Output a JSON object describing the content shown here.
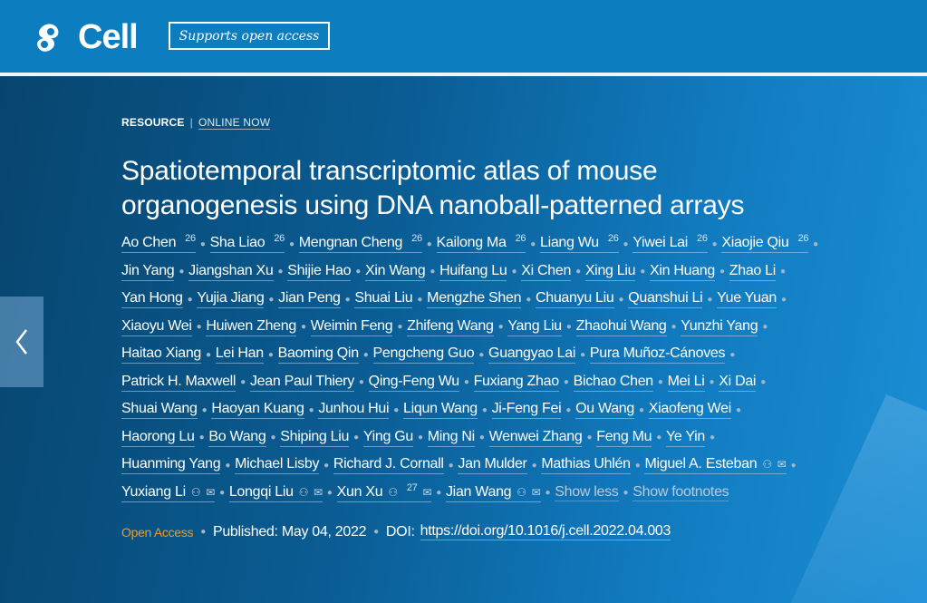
{
  "header": {
    "logo_text": "Cell",
    "badge": "Supports open access"
  },
  "article": {
    "type": "RESOURCE",
    "status": "ONLINE NOW",
    "title_lines": [
      "Spatiotemporal transcriptomic atlas of mouse",
      "organogenesis using DNA nanoball-patterned arrays"
    ],
    "author_lines": [
      [
        {
          "n": "Ao Chen",
          "s": "26"
        },
        {
          "n": "Sha Liao",
          "s": "26"
        },
        {
          "n": "Mengnan Cheng",
          "s": "26"
        },
        {
          "n": "Kailong Ma",
          "s": "26"
        },
        {
          "n": "Liang Wu",
          "s": "26"
        },
        {
          "n": "Yiwei Lai",
          "s": "26"
        },
        {
          "n": "Xiaojie Qiu",
          "s": "26"
        }
      ],
      [
        {
          "n": "Jin Yang"
        },
        {
          "n": "Jiangshan Xu"
        },
        {
          "n": "Shijie Hao"
        },
        {
          "n": "Xin Wang"
        },
        {
          "n": "Huifang Lu"
        },
        {
          "n": "Xi Chen"
        },
        {
          "n": "Xing Liu"
        },
        {
          "n": "Xin Huang"
        },
        {
          "n": "Zhao Li"
        }
      ],
      [
        {
          "n": "Yan Hong"
        },
        {
          "n": "Yujia Jiang"
        },
        {
          "n": "Jian Peng"
        },
        {
          "n": "Shuai Liu"
        },
        {
          "n": "Mengzhe Shen"
        },
        {
          "n": "Chuanyu Liu"
        },
        {
          "n": "Quanshui Li"
        },
        {
          "n": "Yue Yuan"
        }
      ],
      [
        {
          "n": "Xiaoyu Wei"
        },
        {
          "n": "Huiwen Zheng"
        },
        {
          "n": "Weimin Feng"
        },
        {
          "n": "Zhifeng Wang"
        },
        {
          "n": "Yang Liu"
        },
        {
          "n": "Zhaohui Wang"
        },
        {
          "n": "Yunzhi Yang"
        }
      ],
      [
        {
          "n": "Haitao Xiang"
        },
        {
          "n": "Lei Han"
        },
        {
          "n": "Baoming Qin"
        },
        {
          "n": "Pengcheng Guo"
        },
        {
          "n": "Guangyao Lai"
        },
        {
          "n": "Pura Muñoz-Cánoves"
        }
      ],
      [
        {
          "n": "Patrick H. Maxwell"
        },
        {
          "n": "Jean Paul Thiery"
        },
        {
          "n": "Qing-Feng Wu"
        },
        {
          "n": "Fuxiang Zhao"
        },
        {
          "n": "Bichao Chen"
        },
        {
          "n": "Mei Li"
        },
        {
          "n": "Xi Dai"
        }
      ],
      [
        {
          "n": "Shuai Wang"
        },
        {
          "n": "Haoyan Kuang"
        },
        {
          "n": "Junhou Hui"
        },
        {
          "n": "Liqun Wang"
        },
        {
          "n": "Ji-Feng Fei"
        },
        {
          "n": "Ou Wang"
        },
        {
          "n": "Xiaofeng Wei"
        }
      ],
      [
        {
          "n": "Haorong Lu"
        },
        {
          "n": "Bo Wang"
        },
        {
          "n": "Shiping Liu"
        },
        {
          "n": "Ying Gu"
        },
        {
          "n": "Ming Ni"
        },
        {
          "n": "Wenwei Zhang"
        },
        {
          "n": "Feng Mu"
        },
        {
          "n": "Ye Yin"
        }
      ],
      [
        {
          "n": "Huanming Yang"
        },
        {
          "n": "Michael Lisby"
        },
        {
          "n": "Richard J. Cornall"
        },
        {
          "n": "Jan Mulder"
        },
        {
          "n": "Mathias Uhlén"
        },
        {
          "n": "Miguel A. Esteban",
          "c": true
        }
      ],
      [
        {
          "n": "Yuxiang Li",
          "c": true
        },
        {
          "n": "Longqi Liu",
          "c": true
        },
        {
          "n": "Xun Xu",
          "c": true,
          "s": "27"
        },
        {
          "n": "Jian Wang",
          "c": true
        }
      ]
    ],
    "show_less": "Show less",
    "show_footnotes": "Show footnotes",
    "open_access": "Open Access",
    "published": "Published: May 04, 2022",
    "doi_label": "DOI:",
    "doi": "https://doi.org/10.1016/j.cell.2022.04.003"
  },
  "colors": {
    "header": "#0c7dbf",
    "open_access": "#f39a22"
  }
}
